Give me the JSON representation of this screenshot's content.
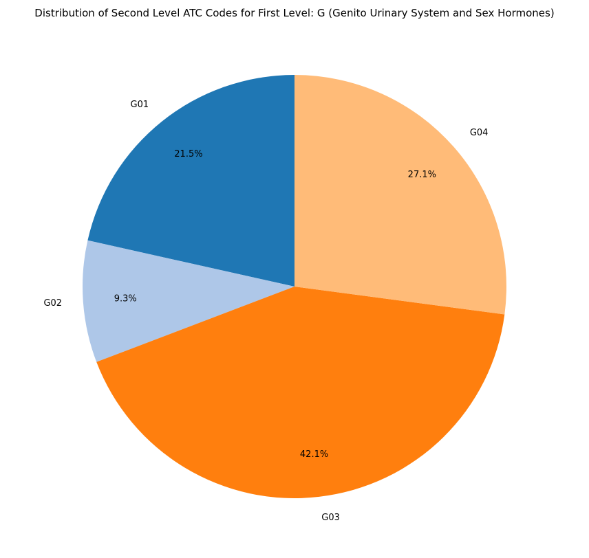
{
  "chart_data": {
    "type": "pie",
    "title": "Distribution of Second Level ATC Codes for First Level: G (Genito Urinary System and Sex Hormones)",
    "start_angle_deg": 90,
    "direction": "counterclockwise",
    "slices": [
      {
        "label": "G01",
        "value": 21.5,
        "pct_label": "21.5%",
        "color": "#1f77b4"
      },
      {
        "label": "G02",
        "value": 9.3,
        "pct_label": "9.3%",
        "color": "#aec7e8"
      },
      {
        "label": "G03",
        "value": 42.1,
        "pct_label": "42.1%",
        "color": "#ff7f0e"
      },
      {
        "label": "G04",
        "value": 27.1,
        "pct_label": "27.1%",
        "color": "#ffbb78"
      }
    ]
  }
}
